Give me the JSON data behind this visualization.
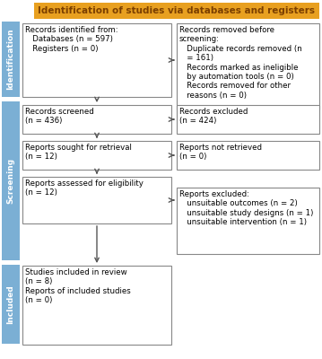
{
  "title": "Identification of studies via databases and registers",
  "title_bg": "#E8A020",
  "title_text_color": "#7B3F00",
  "box_bg": "#FFFFFF",
  "box_border": "#888888",
  "sidebar_color": "#7BAFD4",
  "sidebar_labels": [
    "Identification",
    "Screening",
    "Included"
  ],
  "arrow_color": "#555555",
  "fontsize": 6.2,
  "fontsize_title": 7.5,
  "fontsize_sidebar": 6.5,
  "left_boxes": [
    {
      "text": "Records identified from:\n   Databases (n = 597)\n   Registers (n = 0)"
    },
    {
      "text": "Records screened\n(n = 436)"
    },
    {
      "text": "Reports sought for retrieval\n(n = 12)"
    },
    {
      "text": "Reports assessed for eligibility\n(n = 12)"
    },
    {
      "text": "Studies included in review\n(n = 8)\nReports of included studies\n(n = 0)"
    }
  ],
  "right_boxes": [
    {
      "text": "Records removed before\nscreening:\n   Duplicate records removed (n\n   = 161)\n   Records marked as ineligible\n   by automation tools (n = 0)\n   Records removed for other\n   reasons (n = 0)"
    },
    {
      "text": "Records excluded\n(n = 424)"
    },
    {
      "text": "Reports not retrieved\n(n = 0)"
    },
    {
      "text": "Reports excluded:\n   unsuitable outcomes (n = 2)\n   unsuitable study designs (n = 1)\n   unsuitable intervention (n = 1)"
    }
  ]
}
